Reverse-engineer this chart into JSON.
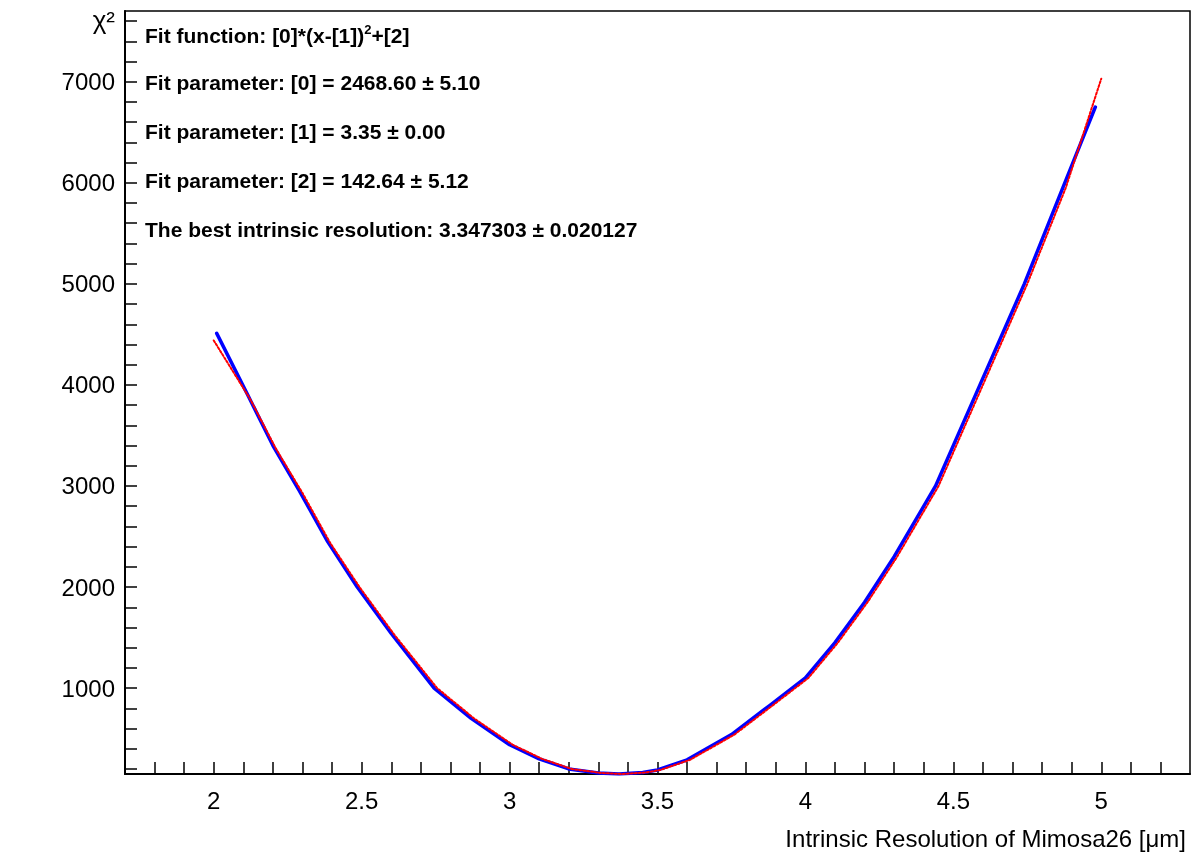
{
  "chart_data": {
    "type": "line",
    "xlabel": "Intrinsic Resolution of Mimosa26 [μm]",
    "ylabel": "χ²",
    "annotations": [
      "Fit function: [0]*(x-[1])$^{2}$+[2]",
      "Fit parameter: [0] = 2468.60 ± 5.10",
      "Fit parameter: [1] = 3.35 ± 0.00",
      "Fit parameter: [2] = 142.64 ± 5.12",
      "The best intrinsic resolution: 3.347303 ± 0.020127"
    ],
    "series": [
      {
        "color": "#0000ff",
        "line_style": "solid",
        "x": [
          2.01,
          2.115,
          2.2,
          2.29,
          2.385,
          2.485,
          2.6,
          2.745,
          2.87,
          3.0,
          3.1,
          3.2,
          3.3,
          3.37,
          3.45,
          3.5,
          3.6,
          3.75,
          3.88,
          4.0,
          4.1,
          4.2,
          4.3,
          4.44,
          4.59,
          4.74,
          4.87,
          4.98
        ],
        "values": [
          4510,
          3900,
          3400,
          2950,
          2450,
          2000,
          1540,
          1000,
          700,
          440,
          300,
          200,
          160,
          150,
          165,
          190,
          290,
          540,
          830,
          1100,
          1450,
          1850,
          2300,
          3000,
          4000,
          5000,
          5950,
          6750
        ]
      },
      {
        "color": "#ff0000",
        "line_style": "dotted",
        "x": [
          2.0,
          2.125,
          2.21,
          2.3,
          2.395,
          2.495,
          2.61,
          2.755,
          2.88,
          3.01,
          3.11,
          3.21,
          3.31,
          3.38,
          3.46,
          3.51,
          3.61,
          3.76,
          3.89,
          4.01,
          4.11,
          4.21,
          4.31,
          4.45,
          4.6,
          4.75,
          4.88,
          5.0
        ],
        "values": [
          4440,
          3850,
          3370,
          2930,
          2430,
          1990,
          1530,
          1000,
          700,
          440,
          300,
          200,
          160,
          150,
          165,
          190,
          290,
          540,
          830,
          1100,
          1450,
          1850,
          2300,
          3000,
          4000,
          5000,
          5950,
          7030
        ]
      }
    ],
    "marker": "none",
    "grid": false,
    "xlim": [
      1.7,
      5.3
    ],
    "xticks": [
      {
        "value": 1.8,
        "label": null
      },
      {
        "value": 1.9,
        "label": null
      },
      2,
      {
        "value": 2.1,
        "label": null
      },
      {
        "value": 2.2,
        "label": null
      },
      {
        "value": 2.3,
        "label": null
      },
      {
        "value": 2.4,
        "label": null
      },
      2.5,
      {
        "value": 2.6,
        "label": null
      },
      {
        "value": 2.7,
        "label": null
      },
      {
        "value": 2.8,
        "label": null
      },
      {
        "value": 2.9,
        "label": null
      },
      3,
      {
        "value": 3.1,
        "label": null
      },
      {
        "value": 3.2,
        "label": null
      },
      {
        "value": 3.3,
        "label": null
      },
      {
        "value": 3.4,
        "label": null
      },
      3.5,
      {
        "value": 3.6,
        "label": null
      },
      {
        "value": 3.7,
        "label": null
      },
      {
        "value": 3.8,
        "label": null
      },
      {
        "value": 3.9,
        "label": null
      },
      4,
      {
        "value": 4.1,
        "label": null
      },
      {
        "value": 4.2,
        "label": null
      },
      {
        "value": 4.3,
        "label": null
      },
      {
        "value": 4.4,
        "label": null
      },
      4.5,
      {
        "value": 4.6,
        "label": null
      },
      {
        "value": 4.7,
        "label": null
      },
      {
        "value": 4.8,
        "label": null
      },
      {
        "value": 4.9,
        "label": null
      },
      5,
      {
        "value": 5.1,
        "label": null
      },
      {
        "value": 5.2,
        "label": null
      }
    ],
    "ylim": [
      150,
      7700
    ],
    "yticks": [
      {
        "value": 200,
        "label": null
      },
      {
        "value": 400,
        "label": null
      },
      {
        "value": 600,
        "label": null
      },
      {
        "value": 800,
        "label": null
      },
      1000,
      {
        "value": 1200,
        "label": null
      },
      {
        "value": 1400,
        "label": null
      },
      {
        "value": 1600,
        "label": null
      },
      {
        "value": 1800,
        "label": null
      },
      2000,
      {
        "value": 2200,
        "label": null
      },
      {
        "value": 2400,
        "label": null
      },
      {
        "value": 2600,
        "label": null
      },
      {
        "value": 2800,
        "label": null
      },
      3000,
      {
        "value": 3200,
        "label": null
      },
      {
        "value": 3400,
        "label": null
      },
      {
        "value": 3600,
        "label": null
      },
      {
        "value": 3800,
        "label": null
      },
      4000,
      {
        "value": 4200,
        "label": null
      },
      {
        "value": 4400,
        "label": null
      },
      {
        "value": 4600,
        "label": null
      },
      {
        "value": 4800,
        "label": null
      },
      5000,
      {
        "value": 5200,
        "label": null
      },
      {
        "value": 5400,
        "label": null
      },
      {
        "value": 5600,
        "label": null
      },
      {
        "value": 5800,
        "label": null
      },
      6000,
      {
        "value": 6200,
        "label": null
      },
      {
        "value": 6400,
        "label": null
      },
      {
        "value": 6600,
        "label": null
      },
      {
        "value": 6800,
        "label": null
      },
      7000,
      {
        "value": 7200,
        "label": null
      },
      {
        "value": 7400,
        "label": null
      },
      {
        "value": 7600,
        "label": null
      }
    ]
  }
}
